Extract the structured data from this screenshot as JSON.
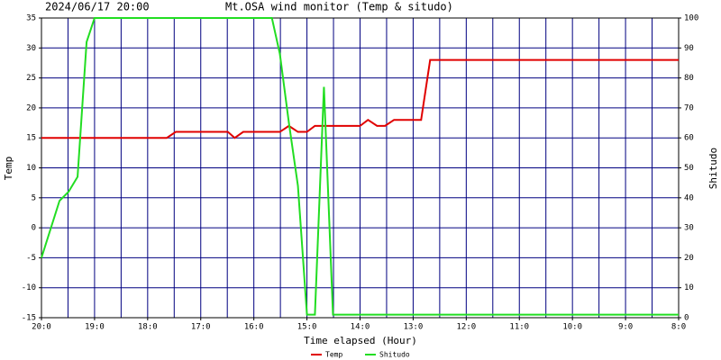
{
  "chart_data": {
    "type": "line",
    "title": "Mt.OSA wind monitor (Temp & situdo)",
    "subtitle": "2024/06/17 20:00",
    "x_label": "Time elapsed (Hour)",
    "y_label": "Temp",
    "y2_label": "Shitudo",
    "xlim": [
      20,
      8
    ],
    "xticks": [
      {
        "value": 20,
        "label": "20:0"
      },
      {
        "value": 19,
        "label": "19:0"
      },
      {
        "value": 18,
        "label": "18:0"
      },
      {
        "value": 17,
        "label": "17:0"
      },
      {
        "value": 16,
        "label": "16:0"
      },
      {
        "value": 15,
        "label": "15:0"
      },
      {
        "value": 14,
        "label": "14:0"
      },
      {
        "value": 13,
        "label": "13:0"
      },
      {
        "value": 12,
        "label": "12:0"
      },
      {
        "value": 11,
        "label": "11:0"
      },
      {
        "value": 10,
        "label": "10:0"
      },
      {
        "value": 9,
        "label": "9:0"
      },
      {
        "value": 8,
        "label": "8:0"
      }
    ],
    "ylim": [
      -15,
      35
    ],
    "yticks": [
      -15,
      -10,
      -5,
      0,
      5,
      10,
      15,
      20,
      25,
      30,
      35
    ],
    "y2lim": [
      0,
      100
    ],
    "y2ticks": [
      0,
      10,
      20,
      30,
      40,
      50,
      60,
      70,
      80,
      90,
      100
    ],
    "grid": true,
    "legend": "bottom",
    "series": [
      {
        "name": "Temp",
        "color": "#e00000",
        "x": [
          20,
          17.64,
          17.47,
          16.49,
          16.36,
          16.2,
          15.51,
          15.34,
          15.17,
          15.0,
          14.85,
          14.0,
          13.85,
          13.68,
          13.53,
          13.36,
          12.85,
          12.68,
          8.0
        ],
        "values": [
          15,
          15,
          16,
          16,
          15,
          16,
          16,
          17,
          16,
          16,
          17,
          17,
          18,
          17,
          17,
          18,
          18,
          28,
          28
        ]
      },
      {
        "name": "Shitudo",
        "color": "#22dd22",
        "axis": "y2",
        "x": [
          20,
          19.66,
          19.49,
          19.32,
          19.15,
          19.0,
          15.66,
          15.51,
          15.34,
          15.17,
          15.0,
          14.85,
          14.68,
          14.51,
          8.0
        ],
        "values": [
          20,
          39,
          42,
          47,
          92,
          100,
          100,
          88,
          65,
          44,
          1,
          1,
          77,
          1,
          1
        ]
      }
    ]
  }
}
